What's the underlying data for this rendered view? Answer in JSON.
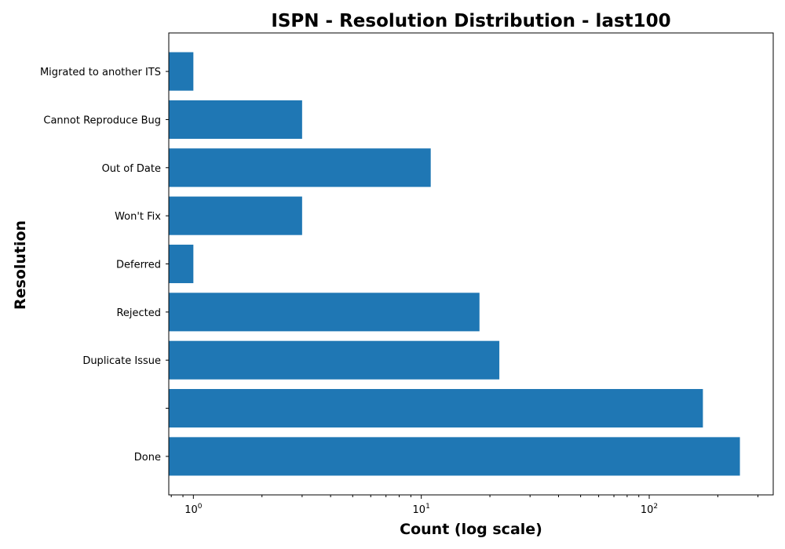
{
  "chart_data": {
    "type": "bar",
    "orientation": "horizontal",
    "title": "ISPN - Resolution Distribution - last100",
    "xlabel": "Count (log scale)",
    "ylabel": "Resolution",
    "xscale": "log",
    "xlim": [
      0.78,
      350
    ],
    "x_ticks": [
      {
        "value": 1,
        "base": "10",
        "exp": "0"
      },
      {
        "value": 10,
        "base": "10",
        "exp": "1"
      },
      {
        "value": 100,
        "base": "10",
        "exp": "2"
      }
    ],
    "categories": [
      "Done",
      "",
      "Duplicate Issue",
      "Rejected",
      "Deferred",
      "Won't Fix",
      "Out of Date",
      "Cannot Reproduce Bug",
      "Migrated to another ITS"
    ],
    "values": [
      250,
      172,
      22,
      18,
      1,
      3,
      11,
      3,
      1
    ],
    "bar_color": "#1f77b4",
    "grid": false,
    "legend": "none"
  }
}
